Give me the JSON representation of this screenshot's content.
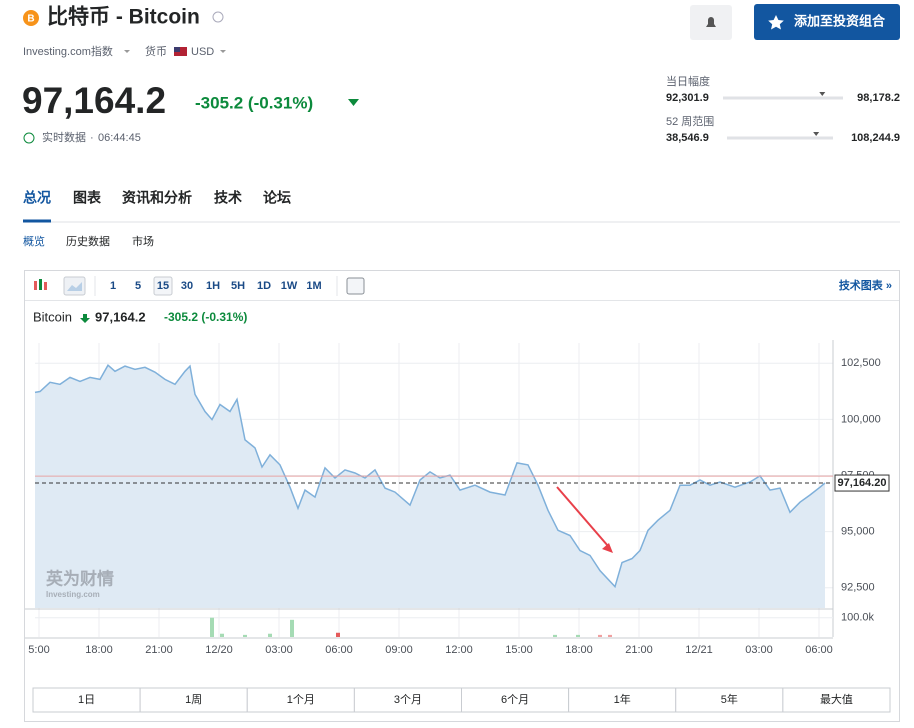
{
  "header": {
    "title": "比特币 - Bitcoin",
    "exchange": "Investing.com指数",
    "currency_label": "货币",
    "currency": "USD",
    "price": "97,164.2",
    "change": "-305.2 (-0.31%)",
    "realtime_label": "实时数据",
    "time": "06:44:45",
    "alert_button": "添加至投资组合"
  },
  "ranges": [
    {
      "label": "当日幅度",
      "low": {
        "value": 92301.9,
        "label": "92,301.9"
      },
      "high": {
        "value": 98178.2,
        "label": "98,178.2"
      }
    },
    {
      "label": "52 周范围",
      "low": {
        "value": 38546.9,
        "label": "38,546.9"
      },
      "high": {
        "value": 108244.9,
        "label": "108,244.9"
      }
    }
  ],
  "tabs": [
    "总况",
    "图表",
    "资讯和分析",
    "技术",
    "论坛"
  ],
  "subtabs": [
    "概览",
    "历史数据",
    "市场"
  ],
  "toolbar": {
    "intervals": [
      "1",
      "5",
      "15",
      "30",
      "1H",
      "5H",
      "1D",
      "1W",
      "1M"
    ],
    "link": "技术图表 »"
  },
  "periods": [
    "1日",
    "1周",
    "1个月",
    "3个月",
    "6个月",
    "1年",
    "5年",
    "最大值"
  ],
  "chart_data": {
    "type": "line",
    "legend_price": "97,164.2",
    "legend_change": "-305.2 (-0.31%)",
    "watermark": "英为财情",
    "watermark_sub": "Investing.com",
    "series": [
      {
        "name": "Bitcoin",
        "color": "#7fb0da",
        "fill": "#dfeaf4",
        "x": [
          14.8,
          15.05,
          15.55,
          16.05,
          16.55,
          17.05,
          17.55,
          18.05,
          18.45,
          18.8,
          19.3,
          19.8,
          20.3,
          20.8,
          21.3,
          21.8,
          22.3,
          22.55,
          22.8,
          23.3,
          23.65,
          24.05,
          24.55,
          24.9,
          25.3,
          25.8,
          26.15,
          26.55,
          27.05,
          27.55,
          27.95,
          28.3,
          28.8,
          29.3,
          29.8,
          30.3,
          30.8,
          31.3,
          31.8,
          32.3,
          32.8,
          33.55,
          34.05,
          34.55,
          35.05,
          35.55,
          36.05,
          36.8,
          37.55,
          38.3,
          38.9,
          39.45,
          39.95,
          40.45,
          40.95,
          41.55,
          42.05,
          42.55,
          43.05,
          43.8,
          44.15,
          44.65,
          45.05,
          45.45,
          45.95,
          46.55,
          47.05,
          47.55,
          48.05,
          48.55,
          49.05,
          49.8,
          50.55,
          51.05,
          51.55,
          52.05,
          52.55,
          53.05,
          53.55,
          54.05,
          54.3
        ],
        "values": [
          101200,
          101240,
          101650,
          101560,
          101870,
          101690,
          101870,
          101780,
          102410,
          102140,
          102370,
          102230,
          102320,
          102100,
          101780,
          101560,
          102140,
          102370,
          101110,
          100350,
          99990,
          100660,
          100350,
          100890,
          99090,
          98730,
          97880,
          98420,
          97970,
          96980,
          96040,
          96850,
          96540,
          97840,
          97390,
          97750,
          97610,
          97390,
          97750,
          96940,
          96760,
          96180,
          97300,
          97660,
          97390,
          97520,
          96850,
          97070,
          96760,
          96630,
          98060,
          97970,
          97070,
          95950,
          95060,
          94830,
          94160,
          93940,
          93260,
          92550,
          93620,
          93800,
          94160,
          95060,
          95510,
          95950,
          97070,
          97070,
          97300,
          97070,
          97210,
          96980,
          97210,
          97480,
          96850,
          96940,
          95860,
          96310,
          96630,
          96980,
          97164.2
        ]
      }
    ],
    "price_marker": {
      "value": 97164.2,
      "label": "97,164.20"
    },
    "reference_line": {
      "value": 97469.4,
      "color": "#e6a3a3"
    },
    "xlim": [
      14.8,
      54.7
    ],
    "xticks": [
      {
        "value": 15,
        "label": "5:00"
      },
      {
        "value": 18,
        "label": "18:00"
      },
      {
        "value": 21,
        "label": "21:00"
      },
      {
        "value": 24,
        "label": "12/20"
      },
      {
        "value": 27,
        "label": "03:00"
      },
      {
        "value": 30,
        "label": "06:00"
      },
      {
        "value": 33,
        "label": "09:00"
      },
      {
        "value": 36,
        "label": "12:00"
      },
      {
        "value": 39,
        "label": "15:00"
      },
      {
        "value": 42,
        "label": "18:00"
      },
      {
        "value": 45,
        "label": "21:00"
      },
      {
        "value": 48,
        "label": "12/21"
      },
      {
        "value": 51,
        "label": "03:00"
      },
      {
        "value": 54,
        "label": "06:00"
      }
    ],
    "ylim": [
      91600,
      103400
    ],
    "yticks": [
      {
        "value": 92500,
        "label": "92,500"
      },
      {
        "value": 95000,
        "label": "95,000"
      },
      {
        "value": 97500,
        "label": "97,500"
      },
      {
        "value": 100000,
        "label": "100,000"
      },
      {
        "value": 102500,
        "label": "102,500"
      }
    ],
    "grid": true,
    "volume": {
      "x": [
        23.65,
        24.15,
        25.3,
        26.55,
        27.65,
        29.95,
        40.8,
        41.95,
        43.05,
        43.55
      ],
      "values": [
        100000,
        17000,
        11000,
        17000,
        89000,
        22000,
        11000,
        11000,
        11000,
        11000
      ],
      "colors": [
        "#a5dbb4",
        "#a5dbb4",
        "#a5dbb4",
        "#a5dbb4",
        "#a5dbb4",
        "#e55b5b",
        "#a5dbb4",
        "#a5dbb4",
        "#f0a0a0",
        "#f0a0a0"
      ],
      "ylim": [
        0,
        140000
      ],
      "yticks": [
        {
          "value": 100000,
          "label": "100.0k"
        }
      ]
    }
  }
}
